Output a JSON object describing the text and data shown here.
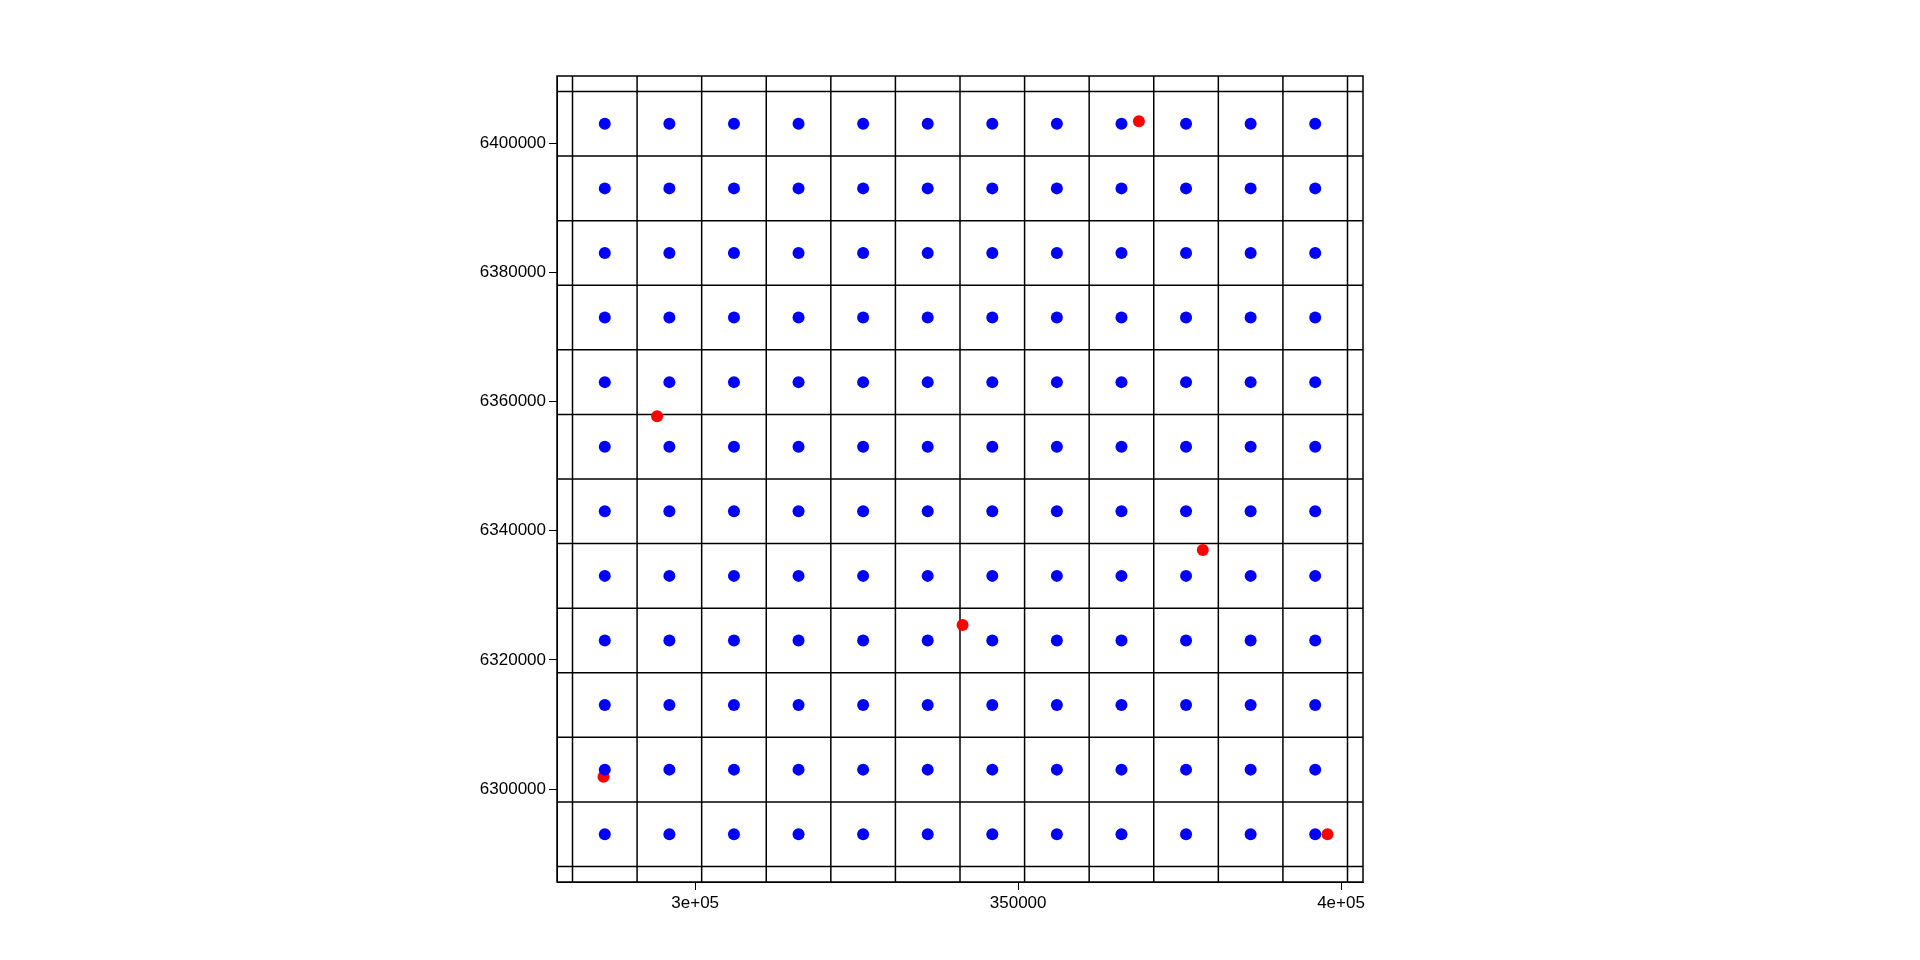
{
  "chart_data": {
    "type": "scatter",
    "marker": "circle",
    "legend": false,
    "grid": false,
    "xlim": [
      278600,
      403400
    ],
    "ylim": [
      6285600,
      6410400
    ],
    "xticks": [
      {
        "value": 300000,
        "label": "3e+05"
      },
      350000,
      {
        "value": 400000,
        "label": "4e+05"
      }
    ],
    "yticks": [
      6300000,
      6320000,
      6340000,
      6360000,
      6380000,
      6400000
    ],
    "series": [
      {
        "color": "#0000ff",
        "x": [
          286000,
          296000,
          306000,
          316000,
          326000,
          336000,
          346000,
          356000,
          366000,
          376000,
          386000,
          396000,
          286000,
          296000,
          306000,
          316000,
          326000,
          336000,
          346000,
          356000,
          366000,
          376000,
          386000,
          396000,
          286000,
          296000,
          306000,
          316000,
          326000,
          336000,
          346000,
          356000,
          366000,
          376000,
          386000,
          396000,
          286000,
          296000,
          306000,
          316000,
          326000,
          336000,
          346000,
          356000,
          366000,
          376000,
          386000,
          396000,
          286000,
          296000,
          306000,
          316000,
          326000,
          336000,
          346000,
          356000,
          366000,
          376000,
          386000,
          396000,
          286000,
          296000,
          306000,
          316000,
          326000,
          336000,
          346000,
          356000,
          366000,
          376000,
          386000,
          396000,
          286000,
          296000,
          306000,
          316000,
          326000,
          336000,
          346000,
          356000,
          366000,
          376000,
          386000,
          396000,
          286000,
          296000,
          306000,
          316000,
          326000,
          336000,
          346000,
          356000,
          366000,
          376000,
          386000,
          396000,
          286000,
          296000,
          306000,
          316000,
          326000,
          336000,
          346000,
          356000,
          366000,
          376000,
          386000,
          396000,
          286000,
          296000,
          306000,
          316000,
          326000,
          336000,
          346000,
          356000,
          366000,
          376000,
          386000,
          396000,
          286000,
          296000,
          306000,
          316000,
          326000,
          336000,
          346000,
          356000,
          366000,
          376000,
          386000,
          396000,
          286000,
          296000,
          306000,
          316000,
          326000,
          336000,
          346000,
          356000,
          366000,
          376000,
          386000,
          396000
        ],
        "values": [
          6403000,
          6403000,
          6403000,
          6403000,
          6403000,
          6403000,
          6403000,
          6403000,
          6403000,
          6403000,
          6403000,
          6403000,
          6393000,
          6393000,
          6393000,
          6393000,
          6393000,
          6393000,
          6393000,
          6393000,
          6393000,
          6393000,
          6393000,
          6393000,
          6383000,
          6383000,
          6383000,
          6383000,
          6383000,
          6383000,
          6383000,
          6383000,
          6383000,
          6383000,
          6383000,
          6383000,
          6373000,
          6373000,
          6373000,
          6373000,
          6373000,
          6373000,
          6373000,
          6373000,
          6373000,
          6373000,
          6373000,
          6373000,
          6363000,
          6363000,
          6363000,
          6363000,
          6363000,
          6363000,
          6363000,
          6363000,
          6363000,
          6363000,
          6363000,
          6363000,
          6353000,
          6353000,
          6353000,
          6353000,
          6353000,
          6353000,
          6353000,
          6353000,
          6353000,
          6353000,
          6353000,
          6353000,
          6343000,
          6343000,
          6343000,
          6343000,
          6343000,
          6343000,
          6343000,
          6343000,
          6343000,
          6343000,
          6343000,
          6343000,
          6333000,
          6333000,
          6333000,
          6333000,
          6333000,
          6333000,
          6333000,
          6333000,
          6333000,
          6333000,
          6333000,
          6333000,
          6323000,
          6323000,
          6323000,
          6323000,
          6323000,
          6323000,
          6323000,
          6323000,
          6323000,
          6323000,
          6323000,
          6323000,
          6313000,
          6313000,
          6313000,
          6313000,
          6313000,
          6313000,
          6313000,
          6313000,
          6313000,
          6313000,
          6313000,
          6313000,
          6303000,
          6303000,
          6303000,
          6303000,
          6303000,
          6303000,
          6303000,
          6303000,
          6303000,
          6303000,
          6303000,
          6303000,
          6293000,
          6293000,
          6293000,
          6293000,
          6293000,
          6293000,
          6293000,
          6293000,
          6293000,
          6293000,
          6293000,
          6293000
        ]
      },
      {
        "color": "#ff0000",
        "x": [
          368700,
          294100,
          378600,
          341400,
          285800,
          397900
        ],
        "values": [
          6403400,
          6357700,
          6337000,
          6325400,
          6301900,
          6293000
        ]
      }
    ],
    "ref_lines": [
      {
        "axis": "x",
        "value": 281000,
        "color": "#000000"
      },
      {
        "axis": "x",
        "value": 291000,
        "color": "#000000"
      },
      {
        "axis": "x",
        "value": 301000,
        "color": "#000000"
      },
      {
        "axis": "x",
        "value": 311000,
        "color": "#000000"
      },
      {
        "axis": "x",
        "value": 321000,
        "color": "#000000"
      },
      {
        "axis": "x",
        "value": 331000,
        "color": "#000000"
      },
      {
        "axis": "x",
        "value": 341000,
        "color": "#000000"
      },
      {
        "axis": "x",
        "value": 351000,
        "color": "#000000"
      },
      {
        "axis": "x",
        "value": 361000,
        "color": "#000000"
      },
      {
        "axis": "x",
        "value": 371000,
        "color": "#000000"
      },
      {
        "axis": "x",
        "value": 381000,
        "color": "#000000"
      },
      {
        "axis": "x",
        "value": 391000,
        "color": "#000000"
      },
      {
        "axis": "x",
        "value": 401000,
        "color": "#000000"
      },
      {
        "axis": "y",
        "value": 6288000,
        "color": "#000000"
      },
      {
        "axis": "y",
        "value": 6298000,
        "color": "#000000"
      },
      {
        "axis": "y",
        "value": 6308000,
        "color": "#000000"
      },
      {
        "axis": "y",
        "value": 6318000,
        "color": "#000000"
      },
      {
        "axis": "y",
        "value": 6328000,
        "color": "#000000"
      },
      {
        "axis": "y",
        "value": 6338000,
        "color": "#000000"
      },
      {
        "axis": "y",
        "value": 6348000,
        "color": "#000000"
      },
      {
        "axis": "y",
        "value": 6358000,
        "color": "#000000"
      },
      {
        "axis": "y",
        "value": 6368000,
        "color": "#000000"
      },
      {
        "axis": "y",
        "value": 6378000,
        "color": "#000000"
      },
      {
        "axis": "y",
        "value": 6388000,
        "color": "#000000"
      },
      {
        "axis": "y",
        "value": 6398000,
        "color": "#000000"
      },
      {
        "axis": "y",
        "value": 6408000,
        "color": "#000000"
      }
    ]
  }
}
